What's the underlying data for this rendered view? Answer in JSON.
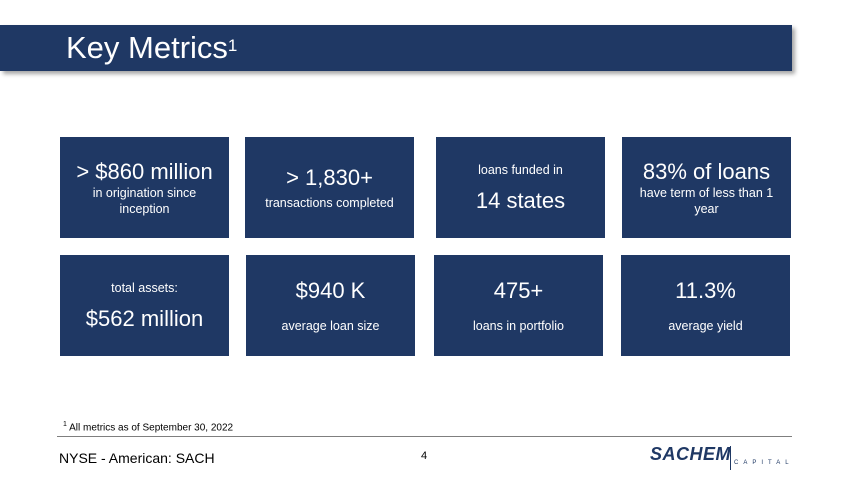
{
  "title": {
    "text": "Key Metrics",
    "superscript": "1"
  },
  "cards_row1": [
    {
      "big": "> $860 million",
      "small": "in origination since inception"
    },
    {
      "big": "> 1,830+",
      "small": "transactions completed"
    },
    {
      "small": "loans funded in",
      "big": "14 states"
    },
    {
      "big": "83% of loans",
      "small": "have term of less than 1 year"
    }
  ],
  "cards_row2": [
    {
      "small": "total assets:",
      "big": "$562 million"
    },
    {
      "big": "$940 K",
      "small": "average loan size"
    },
    {
      "big": "475+",
      "small": "loans in portfolio"
    },
    {
      "big": "11.3%",
      "small": "average yield"
    }
  ],
  "footnote": {
    "marker": "1",
    "text": " All metrics as of September 30, 2022"
  },
  "footer": {
    "ticker": "NYSE - American: SACH",
    "page_number": "4",
    "logo_main": "SACHEM",
    "logo_sub": "CAPITAL"
  },
  "colors": {
    "navy": "#1f3864",
    "rule": "#7f7f7f"
  }
}
